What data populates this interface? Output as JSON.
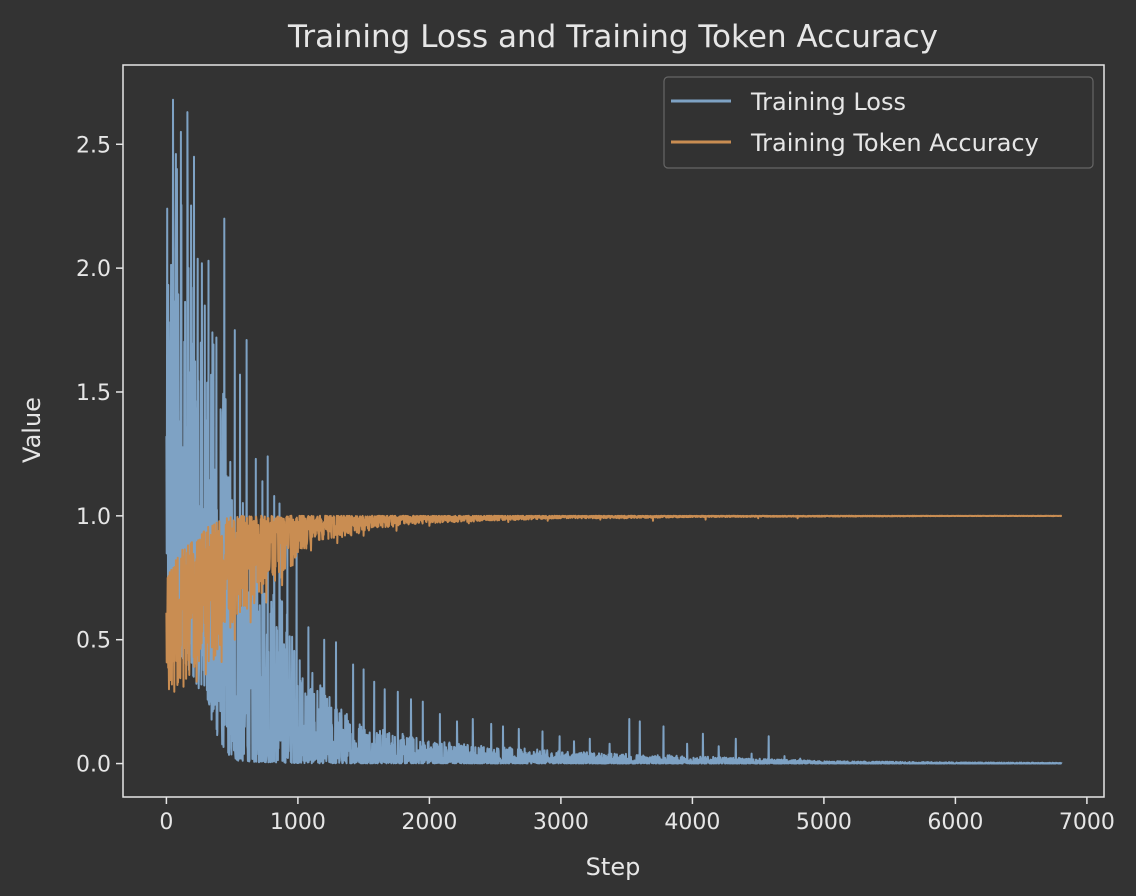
{
  "chart_data": {
    "type": "line",
    "title": "Training Loss and Training Token Accuracy",
    "xlabel": "Step",
    "ylabel": "Value",
    "xlim": [
      -330,
      7130
    ],
    "ylim": [
      -0.135,
      2.82
    ],
    "xticks": [
      0,
      1000,
      2000,
      3000,
      4000,
      5000,
      6000,
      7000
    ],
    "xtick_labels": [
      "0",
      "1000",
      "2000",
      "3000",
      "4000",
      "5000",
      "6000",
      "7000"
    ],
    "yticks": [
      0.0,
      0.5,
      1.0,
      1.5,
      2.0,
      2.5
    ],
    "ytick_labels": [
      "0.0",
      "0.5",
      "1.0",
      "1.5",
      "2.0",
      "2.5"
    ],
    "grid": false,
    "legend": "top-right",
    "x_range": [
      0,
      6810
    ],
    "series": [
      {
        "name": "Training Loss",
        "color": "#7ea2c4",
        "envelope": {
          "x": [
            0,
            50,
            100,
            150,
            200,
            250,
            300,
            350,
            400,
            450,
            500,
            550,
            600,
            700,
            800,
            900,
            1000,
            1200,
            1400,
            1600,
            1800,
            2000,
            2500,
            3000,
            3500,
            4000,
            4500,
            5000,
            6000,
            6810
          ],
          "low": [
            0.75,
            0.5,
            0.45,
            0.4,
            0.35,
            0.3,
            0.3,
            0.15,
            0.1,
            0.05,
            0.02,
            0.01,
            0.01,
            0.005,
            0.005,
            0.003,
            0.002,
            0.001,
            0.001,
            0.001,
            0.001,
            0.001,
            0.0005,
            0.0005,
            0.0003,
            0.0003,
            0.0002,
            0.0002,
            0.0001,
            0.0001
          ],
          "high": [
            2.2,
            2.65,
            2.5,
            2.5,
            2.2,
            2.0,
            1.95,
            1.8,
            1.7,
            1.5,
            1.3,
            1.2,
            1.0,
            0.9,
            0.75,
            0.7,
            0.45,
            0.3,
            0.2,
            0.15,
            0.12,
            0.1,
            0.07,
            0.05,
            0.04,
            0.03,
            0.02,
            0.01,
            0.005,
            0.003
          ]
        },
        "spikes": [
          [
            50,
            2.68
          ],
          [
            80,
            2.4
          ],
          [
            110,
            2.55
          ],
          [
            160,
            2.63
          ],
          [
            210,
            2.45
          ],
          [
            270,
            2.02
          ],
          [
            320,
            2.03
          ],
          [
            380,
            1.72
          ],
          [
            440,
            2.2
          ],
          [
            520,
            1.75
          ],
          [
            560,
            1.57
          ],
          [
            610,
            1.71
          ],
          [
            680,
            1.23
          ],
          [
            730,
            1.14
          ],
          [
            770,
            1.24
          ],
          [
            820,
            1.08
          ],
          [
            860,
            1.05
          ],
          [
            920,
            0.95
          ],
          [
            990,
            0.9
          ],
          [
            1080,
            0.55
          ],
          [
            1200,
            0.5
          ],
          [
            1290,
            0.49
          ],
          [
            1420,
            0.4
          ],
          [
            1500,
            0.38
          ],
          [
            1580,
            0.33
          ],
          [
            1660,
            0.3
          ],
          [
            1760,
            0.29
          ],
          [
            1860,
            0.26
          ],
          [
            1950,
            0.25
          ],
          [
            2080,
            0.2
          ],
          [
            2210,
            0.17
          ],
          [
            2330,
            0.18
          ],
          [
            2470,
            0.16
          ],
          [
            2560,
            0.15
          ],
          [
            2680,
            0.14
          ],
          [
            2860,
            0.13
          ],
          [
            2990,
            0.11
          ],
          [
            3100,
            0.09
          ],
          [
            3220,
            0.1
          ],
          [
            3370,
            0.08
          ],
          [
            3520,
            0.18
          ],
          [
            3600,
            0.17
          ],
          [
            3780,
            0.15
          ],
          [
            3960,
            0.08
          ],
          [
            4080,
            0.12
          ],
          [
            4200,
            0.07
          ],
          [
            4330,
            0.1
          ],
          [
            4450,
            0.04
          ],
          [
            4580,
            0.11
          ],
          [
            4700,
            0.03
          ],
          [
            4820,
            0.02
          ]
        ]
      },
      {
        "name": "Training Token Accuracy",
        "color": "#c98d52",
        "envelope": {
          "x": [
            0,
            50,
            100,
            150,
            200,
            250,
            300,
            350,
            400,
            450,
            500,
            600,
            700,
            800,
            900,
            1000,
            1200,
            1400,
            1600,
            1800,
            2000,
            2500,
            3000,
            3500,
            4000,
            4500,
            5000,
            6000,
            6810
          ],
          "low": [
            0.4,
            0.3,
            0.32,
            0.34,
            0.36,
            0.38,
            0.4,
            0.42,
            0.45,
            0.5,
            0.55,
            0.6,
            0.65,
            0.7,
            0.75,
            0.85,
            0.9,
            0.92,
            0.95,
            0.96,
            0.97,
            0.98,
            0.99,
            0.99,
            0.995,
            0.996,
            0.997,
            0.999,
            0.999
          ],
          "high": [
            0.75,
            0.8,
            0.85,
            0.88,
            0.9,
            0.92,
            0.95,
            0.97,
            0.98,
            0.99,
            1.0,
            1.0,
            1.0,
            1.0,
            1.0,
            1.0,
            1.0,
            1.0,
            1.0,
            1.0,
            1.0,
            1.0,
            1.0,
            1.0,
            1.0,
            1.0,
            1.0,
            1.0,
            1.0
          ]
        },
        "spikes": [
          [
            20,
            0.3
          ],
          [
            60,
            0.29
          ],
          [
            130,
            0.31
          ],
          [
            230,
            0.33
          ],
          [
            300,
            0.36
          ],
          [
            360,
            0.42
          ],
          [
            420,
            0.41
          ],
          [
            520,
            0.5
          ],
          [
            640,
            0.57
          ],
          [
            760,
            0.65
          ],
          [
            880,
            0.72
          ],
          [
            960,
            0.8
          ],
          [
            1100,
            0.86
          ],
          [
            1300,
            0.89
          ],
          [
            1500,
            0.92
          ],
          [
            1750,
            0.94
          ],
          [
            2000,
            0.96
          ],
          [
            2300,
            0.97
          ],
          [
            2600,
            0.975
          ],
          [
            2900,
            0.98
          ],
          [
            3300,
            0.985
          ],
          [
            3700,
            0.98
          ],
          [
            4100,
            0.985
          ],
          [
            4500,
            0.99
          ],
          [
            4800,
            0.99
          ]
        ]
      }
    ]
  }
}
